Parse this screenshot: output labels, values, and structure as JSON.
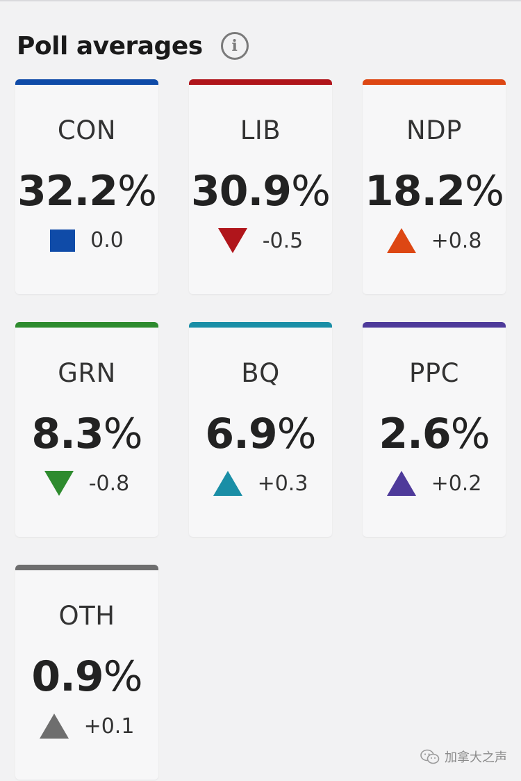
{
  "header": {
    "title": "Poll averages",
    "info_glyph": "i"
  },
  "cards": [
    {
      "party": "CON",
      "pct": "32.2",
      "unit": "%",
      "change": "0.0",
      "trend": "flat",
      "color": "#0f4ba8"
    },
    {
      "party": "LIB",
      "pct": "30.9",
      "unit": "%",
      "change": "-0.5",
      "trend": "down",
      "color": "#b0151b"
    },
    {
      "party": "NDP",
      "pct": "18.2",
      "unit": "%",
      "change": "+0.8",
      "trend": "up",
      "color": "#dd4713"
    },
    {
      "party": "GRN",
      "pct": "8.3",
      "unit": "%",
      "change": "-0.8",
      "trend": "down",
      "color": "#2e8b2e"
    },
    {
      "party": "BQ",
      "pct": "6.9",
      "unit": "%",
      "change": "+0.3",
      "trend": "up",
      "color": "#1a8ea6"
    },
    {
      "party": "PPC",
      "pct": "2.6",
      "unit": "%",
      "change": "+0.2",
      "trend": "up",
      "color": "#4e3a9a"
    },
    {
      "party": "OTH",
      "pct": "0.9",
      "unit": "%",
      "change": "+0.1",
      "trend": "up",
      "color": "#6e6e6e"
    }
  ],
  "watermark": {
    "text": "加拿大之声",
    "icon": "wechat-logo-icon"
  }
}
